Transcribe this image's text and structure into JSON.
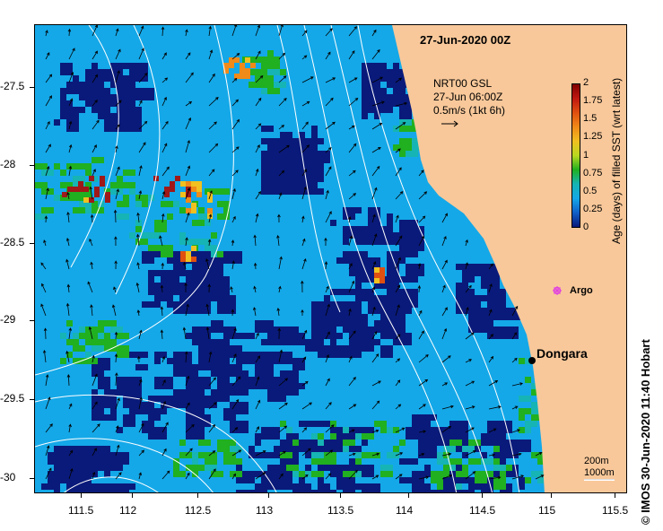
{
  "map": {
    "date_title": "27-Jun-2020 00Z",
    "credit": "© IMOS 30-Jun-2020 11:40 Hobart",
    "current_legend": {
      "line1": "NRT00 GSL",
      "line2": "27-Jun 06:00Z",
      "line3": "0.5m/s (1kt 6h)"
    },
    "contour_legend": {
      "line1": "200m",
      "line2": "1000m"
    },
    "places": [
      {
        "name": "Argo",
        "lon": 115.1,
        "lat": -28.79,
        "marker": "magenta-cross"
      },
      {
        "name": "Dongara",
        "lon": 114.93,
        "lat": -29.26,
        "marker": "black-dot"
      }
    ],
    "x_ticks": [
      "111.5",
      "112",
      "112.5",
      "113",
      "113.5",
      "114",
      "114.5",
      "115",
      "115.5"
    ],
    "y_ticks": [
      "-27.5",
      "-28",
      "-28.5",
      "-29",
      "-29.5",
      "-30"
    ],
    "lon_range": [
      111.3,
      115.6
    ],
    "lat_range": [
      -27.1,
      -30.1
    ],
    "colorbar": {
      "title": "Age (days) of filled SST (wrt latest)",
      "ticks": [
        "2",
        "1.75",
        "1.5",
        "1.25",
        "1",
        "0.75",
        "0.5",
        "0.25",
        "0"
      ],
      "colors": [
        "#800000",
        "#c01810",
        "#e05010",
        "#f08a18",
        "#f0c020",
        "#b8d820",
        "#20b020",
        "#16b4b4",
        "#14a8e8",
        "#1060c8",
        "#0a1a7a"
      ]
    },
    "colors": {
      "land": "#f8c89a",
      "ocean_deep": "#0a1a7a",
      "ocean_mid": "#14a8e8",
      "ocean_light": "#20b020",
      "contour": "#ffffff",
      "argo": "#e040e0"
    }
  }
}
